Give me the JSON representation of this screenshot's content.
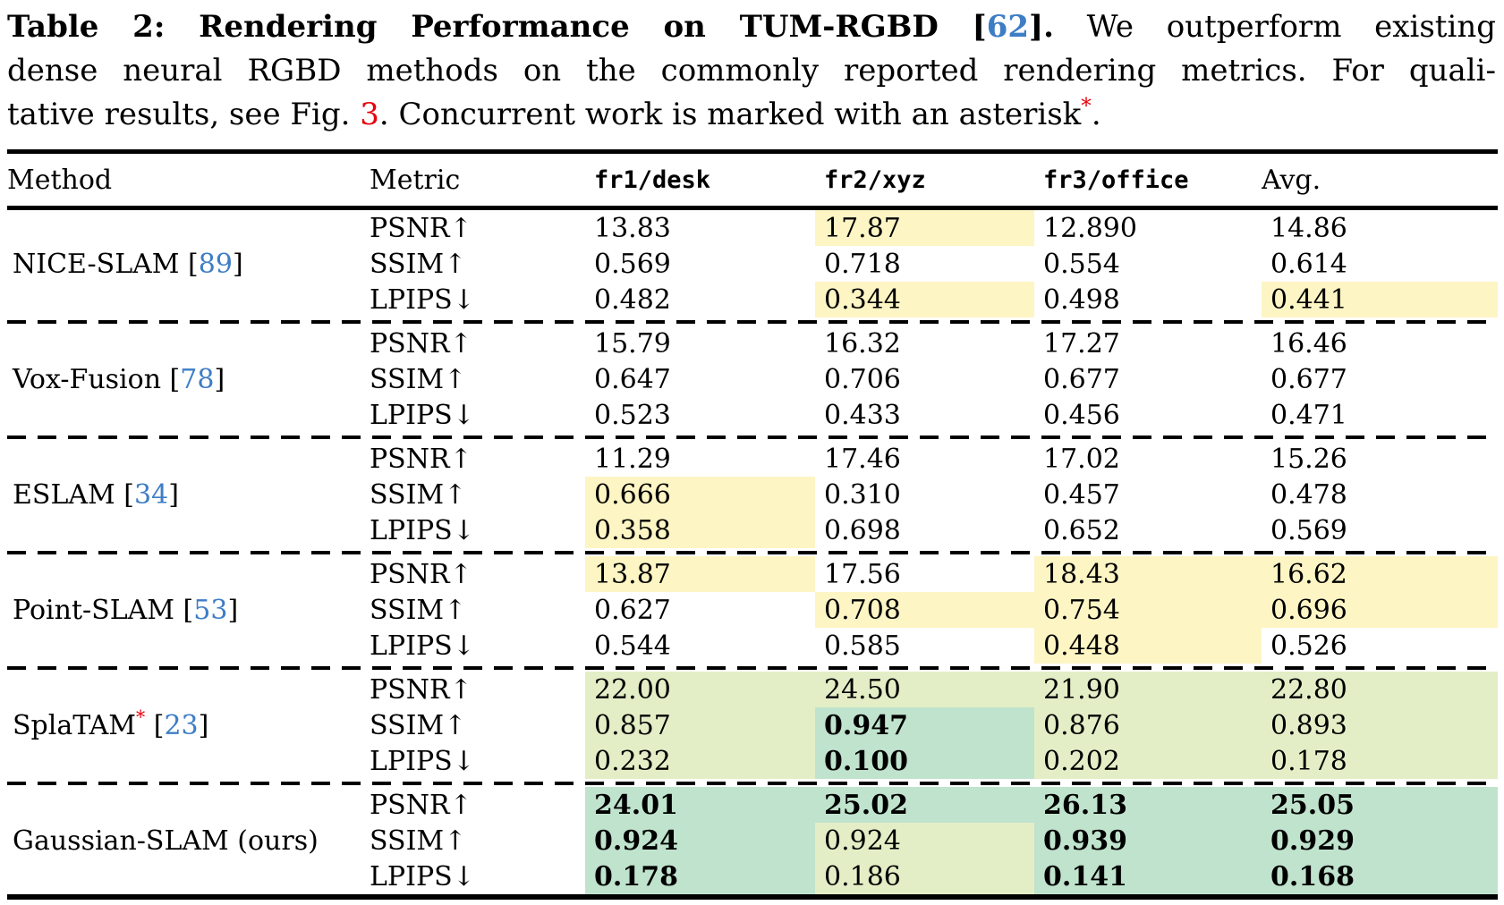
{
  "caption": {
    "lines": [
      {
        "justify": true,
        "segments": [
          {
            "text": "Table 2: Rendering Performance on TUM-RGBD [",
            "type": "bold-text"
          },
          {
            "text": "62",
            "type": "bold-cite"
          },
          {
            "text": "].",
            "type": "bold-text"
          },
          {
            "text": " We outperform existing",
            "type": "text"
          }
        ]
      },
      {
        "justify": true,
        "segments": [
          {
            "text": "dense neural RGBD methods on the commonly reported rendering metrics. For quali-",
            "type": "text"
          }
        ]
      },
      {
        "justify": false,
        "segments": [
          {
            "text": "tative results, see Fig. ",
            "type": "text"
          },
          {
            "text": "3",
            "type": "figref"
          },
          {
            "text": ". Concurrent work is marked with an asterisk",
            "type": "text"
          },
          {
            "text": "*",
            "type": "asterisk"
          },
          {
            "text": ".",
            "type": "text"
          }
        ]
      }
    ]
  },
  "colors": {
    "citation_blue": "#3e7dc5",
    "accent_red": "#e8000d",
    "highlight_best_teal": "#c0e3cd",
    "highlight_second_green": "#e3eec6",
    "highlight_third_yellow": "#fdf5c4"
  },
  "table": {
    "columns": [
      "Method",
      "Metric",
      "fr1/desk",
      "fr2/xyz",
      "fr3/office",
      "Avg."
    ],
    "groups": [
      {
        "method": "NICE-SLAM",
        "ref": "89",
        "asterisk": false,
        "rows": [
          {
            "metric": "PSNR↑",
            "cells": [
              {
                "v": "13.83"
              },
              {
                "v": "17.87",
                "h": "y"
              },
              {
                "v": "12.890"
              },
              {
                "v": "14.86"
              }
            ]
          },
          {
            "metric": "SSIM↑",
            "cells": [
              {
                "v": "0.569"
              },
              {
                "v": "0.718"
              },
              {
                "v": "0.554"
              },
              {
                "v": "0.614"
              }
            ]
          },
          {
            "metric": "LPIPS↓",
            "cells": [
              {
                "v": "0.482"
              },
              {
                "v": "0.344",
                "h": "y"
              },
              {
                "v": "0.498"
              },
              {
                "v": "0.441",
                "h": "y"
              }
            ]
          }
        ]
      },
      {
        "method": "Vox-Fusion",
        "ref": "78",
        "asterisk": false,
        "rows": [
          {
            "metric": "PSNR↑",
            "cells": [
              {
                "v": "15.79"
              },
              {
                "v": "16.32"
              },
              {
                "v": "17.27"
              },
              {
                "v": "16.46"
              }
            ]
          },
          {
            "metric": "SSIM↑",
            "cells": [
              {
                "v": "0.647"
              },
              {
                "v": "0.706"
              },
              {
                "v": "0.677"
              },
              {
                "v": "0.677"
              }
            ]
          },
          {
            "metric": "LPIPS↓",
            "cells": [
              {
                "v": "0.523"
              },
              {
                "v": "0.433"
              },
              {
                "v": "0.456"
              },
              {
                "v": "0.471"
              }
            ]
          }
        ]
      },
      {
        "method": "ESLAM",
        "ref": "34",
        "asterisk": false,
        "rows": [
          {
            "metric": "PSNR↑",
            "cells": [
              {
                "v": "11.29"
              },
              {
                "v": "17.46"
              },
              {
                "v": "17.02"
              },
              {
                "v": "15.26"
              }
            ]
          },
          {
            "metric": "SSIM↑",
            "cells": [
              {
                "v": "0.666",
                "h": "y"
              },
              {
                "v": "0.310"
              },
              {
                "v": "0.457"
              },
              {
                "v": "0.478"
              }
            ]
          },
          {
            "metric": "LPIPS↓",
            "cells": [
              {
                "v": "0.358",
                "h": "y"
              },
              {
                "v": "0.698"
              },
              {
                "v": "0.652"
              },
              {
                "v": "0.569"
              }
            ]
          }
        ]
      },
      {
        "method": "Point-SLAM",
        "ref": "53",
        "asterisk": false,
        "rows": [
          {
            "metric": "PSNR↑",
            "cells": [
              {
                "v": "13.87",
                "h": "y"
              },
              {
                "v": "17.56"
              },
              {
                "v": "18.43",
                "h": "y"
              },
              {
                "v": "16.62",
                "h": "y"
              }
            ]
          },
          {
            "metric": "SSIM↑",
            "cells": [
              {
                "v": "0.627"
              },
              {
                "v": "0.708",
                "h": "y"
              },
              {
                "v": "0.754",
                "h": "y"
              },
              {
                "v": "0.696",
                "h": "y"
              }
            ]
          },
          {
            "metric": "LPIPS↓",
            "cells": [
              {
                "v": "0.544"
              },
              {
                "v": "0.585"
              },
              {
                "v": "0.448",
                "h": "y"
              },
              {
                "v": "0.526"
              }
            ]
          }
        ]
      },
      {
        "method": "SplaTAM",
        "ref": "23",
        "asterisk": true,
        "rows": [
          {
            "metric": "PSNR↑",
            "cells": [
              {
                "v": "22.00",
                "h": "g"
              },
              {
                "v": "24.50",
                "h": "g"
              },
              {
                "v": "21.90",
                "h": "g"
              },
              {
                "v": "22.80",
                "h": "g"
              }
            ]
          },
          {
            "metric": "SSIM↑",
            "cells": [
              {
                "v": "0.857",
                "h": "g"
              },
              {
                "v": "0.947",
                "h": "t",
                "b": true
              },
              {
                "v": "0.876",
                "h": "g"
              },
              {
                "v": "0.893",
                "h": "g"
              }
            ]
          },
          {
            "metric": "LPIPS↓",
            "cells": [
              {
                "v": "0.232",
                "h": "g"
              },
              {
                "v": "0.100",
                "h": "t",
                "b": true
              },
              {
                "v": "0.202",
                "h": "g"
              },
              {
                "v": "0.178",
                "h": "g"
              }
            ]
          }
        ]
      },
      {
        "method": "Gaussian-SLAM (ours)",
        "ref": null,
        "asterisk": false,
        "rows": [
          {
            "metric": "PSNR↑",
            "cells": [
              {
                "v": "24.01",
                "h": "t",
                "b": true
              },
              {
                "v": "25.02",
                "h": "t",
                "b": true
              },
              {
                "v": "26.13",
                "h": "t",
                "b": true
              },
              {
                "v": "25.05",
                "h": "t",
                "b": true
              }
            ]
          },
          {
            "metric": "SSIM↑",
            "cells": [
              {
                "v": "0.924",
                "h": "t",
                "b": true
              },
              {
                "v": "0.924",
                "h": "g"
              },
              {
                "v": "0.939",
                "h": "t",
                "b": true
              },
              {
                "v": "0.929",
                "h": "t",
                "b": true
              }
            ]
          },
          {
            "metric": "LPIPS↓",
            "cells": [
              {
                "v": "0.178",
                "h": "t",
                "b": true
              },
              {
                "v": "0.186",
                "h": "g"
              },
              {
                "v": "0.141",
                "h": "t",
                "b": true
              },
              {
                "v": "0.168",
                "h": "t",
                "b": true
              }
            ]
          }
        ]
      }
    ]
  }
}
